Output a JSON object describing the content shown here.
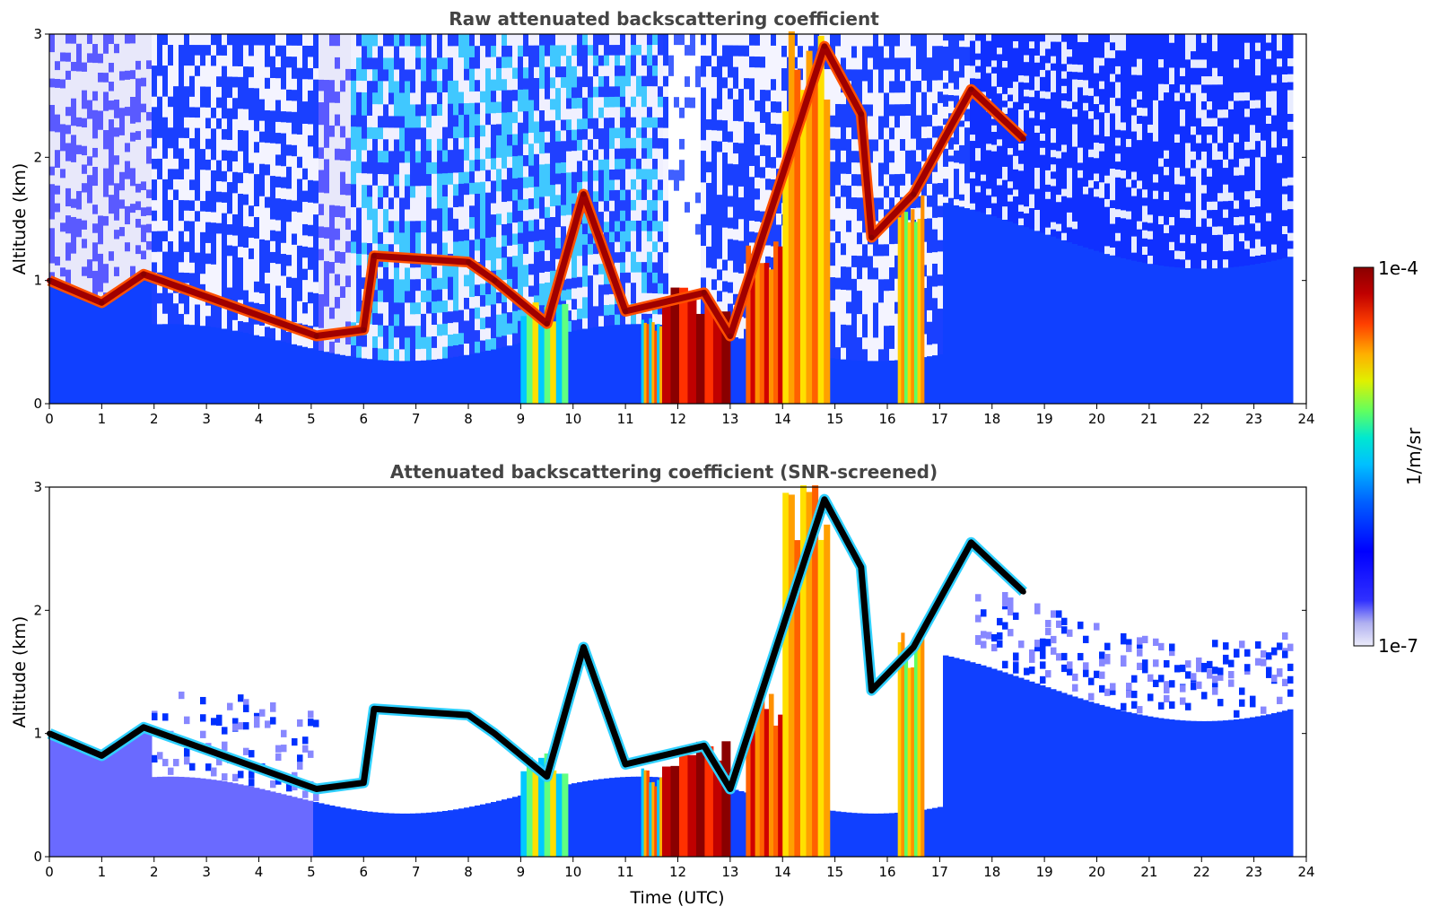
{
  "chart_data": [
    {
      "type": "heatmap",
      "title": "Raw attenuated backscattering coefficient",
      "xlabel": "",
      "ylabel": "Altitude (km)",
      "xlim": [
        0,
        24
      ],
      "ylim": [
        0,
        3
      ],
      "x_ticks": [
        "0",
        "1",
        "2",
        "3",
        "4",
        "5",
        "6",
        "7",
        "8",
        "9",
        "10",
        "11",
        "12",
        "13",
        "14",
        "15",
        "16",
        "17",
        "18",
        "19",
        "20",
        "21",
        "22",
        "23",
        "24"
      ],
      "y_ticks": [
        "0",
        "1",
        "2",
        "3"
      ],
      "data_coverage_end_hour": 23.7,
      "cloud_layer": [
        {
          "time": 0.0,
          "altitude_km": 1.0
        },
        {
          "time": 1.0,
          "altitude_km": 0.82
        },
        {
          "time": 1.8,
          "altitude_km": 1.05
        },
        {
          "time": 5.1,
          "altitude_km": 0.55
        },
        {
          "time": 6.0,
          "altitude_km": 0.6
        },
        {
          "time": 6.2,
          "altitude_km": 1.2
        },
        {
          "time": 8.0,
          "altitude_km": 1.15
        },
        {
          "time": 8.5,
          "altitude_km": 1.0
        },
        {
          "time": 9.5,
          "altitude_km": 0.65
        },
        {
          "time": 10.2,
          "altitude_km": 1.7
        },
        {
          "time": 11.0,
          "altitude_km": 0.75
        },
        {
          "time": 12.5,
          "altitude_km": 0.9
        },
        {
          "time": 13.0,
          "altitude_km": 0.55
        },
        {
          "time": 14.8,
          "altitude_km": 2.9
        },
        {
          "time": 15.5,
          "altitude_km": 2.35
        },
        {
          "time": 15.7,
          "altitude_km": 1.35
        },
        {
          "time": 16.5,
          "altitude_km": 1.7
        },
        {
          "time": 17.6,
          "altitude_km": 2.55
        },
        {
          "time": 18.6,
          "altitude_km": 2.15
        }
      ]
    },
    {
      "type": "heatmap",
      "title": "Attenuated backscattering coefficient (SNR-screened)",
      "xlabel": "Time (UTC)",
      "ylabel": "Altitude (km)",
      "xlim": [
        0,
        24
      ],
      "ylim": [
        0,
        3
      ],
      "x_ticks": [
        "0",
        "1",
        "2",
        "3",
        "4",
        "5",
        "6",
        "7",
        "8",
        "9",
        "10",
        "11",
        "12",
        "13",
        "14",
        "15",
        "16",
        "17",
        "18",
        "19",
        "20",
        "21",
        "22",
        "23",
        "24"
      ],
      "y_ticks": [
        "0",
        "1",
        "2",
        "3"
      ],
      "data_coverage_end_hour": 23.7,
      "cloud_layer": [
        {
          "time": 0.0,
          "altitude_km": 1.0
        },
        {
          "time": 1.0,
          "altitude_km": 0.82
        },
        {
          "time": 1.8,
          "altitude_km": 1.05
        },
        {
          "time": 5.1,
          "altitude_km": 0.55
        },
        {
          "time": 6.0,
          "altitude_km": 0.6
        },
        {
          "time": 6.2,
          "altitude_km": 1.2
        },
        {
          "time": 8.0,
          "altitude_km": 1.15
        },
        {
          "time": 8.5,
          "altitude_km": 1.0
        },
        {
          "time": 9.5,
          "altitude_km": 0.65
        },
        {
          "time": 10.2,
          "altitude_km": 1.7
        },
        {
          "time": 11.0,
          "altitude_km": 0.75
        },
        {
          "time": 12.5,
          "altitude_km": 0.9
        },
        {
          "time": 13.0,
          "altitude_km": 0.55
        },
        {
          "time": 14.8,
          "altitude_km": 2.9
        },
        {
          "time": 15.5,
          "altitude_km": 2.35
        },
        {
          "time": 15.7,
          "altitude_km": 1.35
        },
        {
          "time": 16.5,
          "altitude_km": 1.7
        },
        {
          "time": 17.6,
          "altitude_km": 2.55
        },
        {
          "time": 18.6,
          "altitude_km": 2.15
        }
      ]
    }
  ],
  "colorbar": {
    "label": "1/m/sr",
    "max_label": "1e-4",
    "min_label": "1e-7",
    "scale": "log",
    "colors": [
      "#e8e8f8",
      "#b8b8f0",
      "#4040ff",
      "#0000ff",
      "#0050ff",
      "#00b0ff",
      "#00e0e0",
      "#40ff80",
      "#d0ff00",
      "#ffe000",
      "#ff9000",
      "#ff3000",
      "#c00000",
      "#900000"
    ]
  }
}
